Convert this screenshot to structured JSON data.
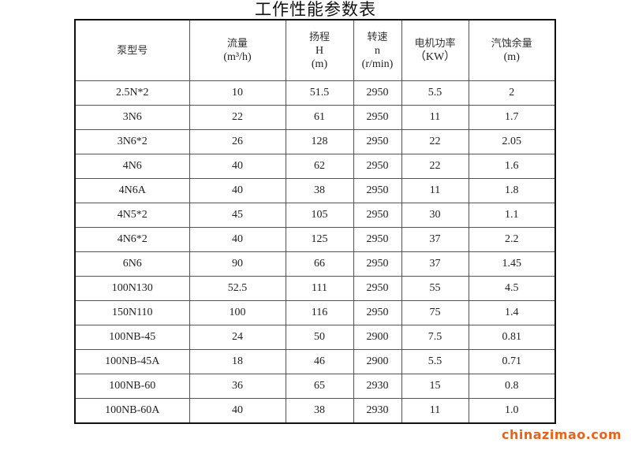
{
  "title": "工作性能参数表",
  "headers": [
    {
      "lines": [
        "泵型号"
      ]
    },
    {
      "lines": [
        "流量",
        "(m³/h)"
      ]
    },
    {
      "lines": [
        "扬程",
        "H",
        "(m)"
      ]
    },
    {
      "lines": [
        "转速",
        "n",
        "(r/min)"
      ]
    },
    {
      "lines": [
        "电机功率",
        "（KW）"
      ]
    },
    {
      "lines": [
        "汽蚀余量",
        "(m)"
      ]
    }
  ],
  "rows": [
    [
      "2.5N*2",
      "10",
      "51.5",
      "2950",
      "5.5",
      "2"
    ],
    [
      "3N6",
      "22",
      "61",
      "2950",
      "11",
      "1.7"
    ],
    [
      "3N6*2",
      "26",
      "128",
      "2950",
      "22",
      "2.05"
    ],
    [
      "4N6",
      "40",
      "62",
      "2950",
      "22",
      "1.6"
    ],
    [
      "4N6A",
      "40",
      "38",
      "2950",
      "11",
      "1.8"
    ],
    [
      "4N5*2",
      "45",
      "105",
      "2950",
      "30",
      "1.1"
    ],
    [
      "4N6*2",
      "40",
      "125",
      "2950",
      "37",
      "2.2"
    ],
    [
      "6N6",
      "90",
      "66",
      "2950",
      "37",
      "1.45"
    ],
    [
      "100N130",
      "52.5",
      "111",
      "2950",
      "55",
      "4.5"
    ],
    [
      "150N110",
      "100",
      "116",
      "2950",
      "75",
      "1.4"
    ],
    [
      "100NB-45",
      "24",
      "50",
      "2900",
      "7.5",
      "0.81"
    ],
    [
      "100NB-45A",
      "18",
      "46",
      "2900",
      "5.5",
      "0.71"
    ],
    [
      "100NB-60",
      "36",
      "65",
      "2930",
      "15",
      "0.8"
    ],
    [
      "100NB-60A",
      "40",
      "38",
      "2930",
      "11",
      "1.0"
    ]
  ],
  "watermark": "chinazimao.com",
  "colors": {
    "watermark": "#e8621a",
    "border": "#111111"
  }
}
